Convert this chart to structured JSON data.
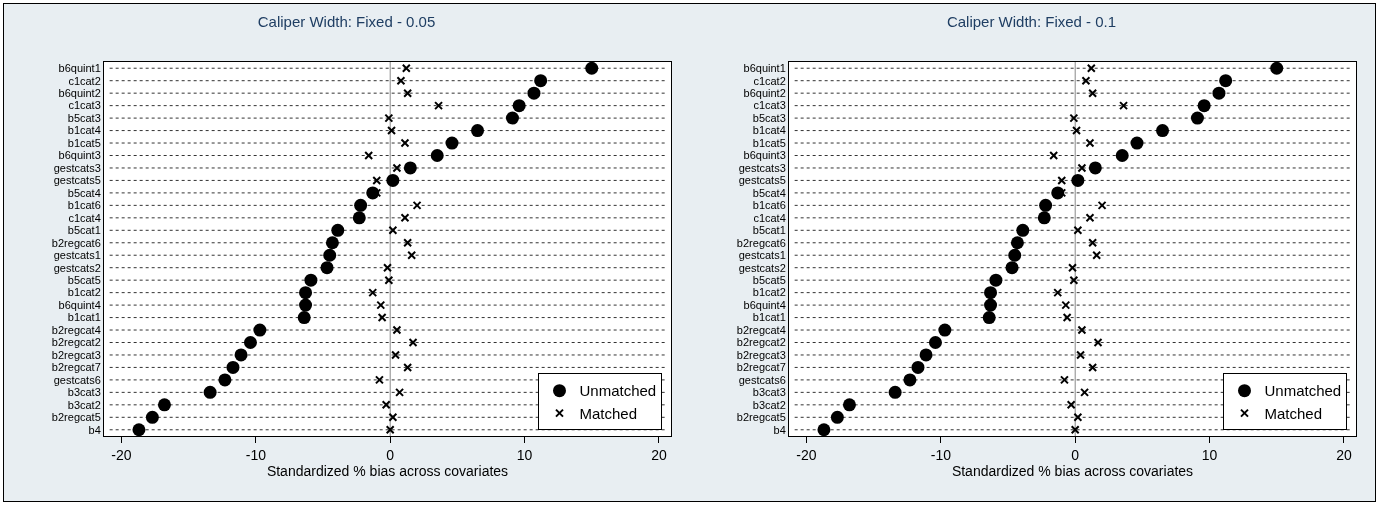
{
  "chart_data": [
    {
      "type": "scatter",
      "orientation": "horizontal",
      "title": "Caliper Width: Fixed - 0.05",
      "xlabel": "Standardized % bias across covariates",
      "categories": [
        "b6quint1",
        "c1cat2",
        "b6quint2",
        "c1cat3",
        "b5cat3",
        "b1cat4",
        "b1cat5",
        "b6quint3",
        "gestcats3",
        "gestcats5",
        "b5cat4",
        "b1cat6",
        "c1cat4",
        "b5cat1",
        "b2regcat6",
        "gestcats1",
        "gestcats2",
        "b5cat5",
        "b1cat2",
        "b6quint4",
        "b1cat1",
        "b2regcat4",
        "b2regcat2",
        "b2regcat3",
        "b2regcat7",
        "gestcats6",
        "b3cat3",
        "b3cat2",
        "b2regcat5",
        "b4"
      ],
      "series": [
        {
          "name": "Unmatched",
          "color": "#000000",
          "marker": "circle",
          "values": [
            15.0,
            11.2,
            10.7,
            9.6,
            9.1,
            6.5,
            4.6,
            3.5,
            1.5,
            0.2,
            -1.3,
            -2.2,
            -2.3,
            -3.9,
            -4.3,
            -4.5,
            -4.7,
            -5.9,
            -6.3,
            -6.3,
            -6.4,
            -9.7,
            -10.4,
            -11.1,
            -11.7,
            -12.3,
            -13.4,
            -16.8,
            -17.7,
            -18.7
          ]
        },
        {
          "name": "Matched",
          "color": "#000000",
          "marker": "cross",
          "values": [
            1.2,
            0.8,
            1.3,
            3.6,
            -0.1,
            0.1,
            1.1,
            -1.6,
            0.5,
            -1.0,
            -1.0,
            2.0,
            1.1,
            0.2,
            1.3,
            1.6,
            -0.2,
            -0.1,
            -1.3,
            -0.7,
            -0.6,
            0.5,
            1.7,
            0.4,
            1.3,
            -0.8,
            0.7,
            -0.3,
            0.2,
            0.0
          ]
        }
      ],
      "xlim": [
        -21.3,
        20.9
      ],
      "xticks": [
        -20,
        -10,
        0,
        10,
        20
      ],
      "ref_lines": [
        {
          "axis": "x",
          "value": 0,
          "color": "#888888"
        }
      ],
      "grid": "y",
      "line_style": "dotted",
      "legend": "bottom right"
    },
    {
      "type": "scatter",
      "orientation": "horizontal",
      "title": "Caliper Width: Fixed - 0.1",
      "xlabel": "Standardized % bias across covariates",
      "categories": [
        "b6quint1",
        "c1cat2",
        "b6quint2",
        "c1cat3",
        "b5cat3",
        "b1cat4",
        "b1cat5",
        "b6quint3",
        "gestcats3",
        "gestcats5",
        "b5cat4",
        "b1cat6",
        "c1cat4",
        "b5cat1",
        "b2regcat6",
        "gestcats1",
        "gestcats2",
        "b5cat5",
        "b1cat2",
        "b6quint4",
        "b1cat1",
        "b2regcat4",
        "b2regcat2",
        "b2regcat3",
        "b2regcat7",
        "gestcats6",
        "b3cat3",
        "b3cat2",
        "b2regcat5",
        "b4"
      ],
      "series": [
        {
          "name": "Unmatched",
          "color": "#000000",
          "marker": "circle",
          "values": [
            15.0,
            11.2,
            10.7,
            9.6,
            9.1,
            6.5,
            4.6,
            3.5,
            1.5,
            0.2,
            -1.3,
            -2.2,
            -2.3,
            -3.9,
            -4.3,
            -4.5,
            -4.7,
            -5.9,
            -6.3,
            -6.3,
            -6.4,
            -9.7,
            -10.4,
            -11.1,
            -11.7,
            -12.3,
            -13.4,
            -16.8,
            -17.7,
            -18.7
          ]
        },
        {
          "name": "Matched",
          "color": "#000000",
          "marker": "cross",
          "values": [
            1.2,
            0.8,
            1.3,
            3.6,
            -0.1,
            0.1,
            1.1,
            -1.6,
            0.5,
            -1.0,
            -1.0,
            2.0,
            1.1,
            0.2,
            1.3,
            1.6,
            -0.2,
            -0.1,
            -1.3,
            -0.7,
            -0.6,
            0.5,
            1.7,
            0.4,
            1.3,
            -0.8,
            0.7,
            -0.3,
            0.2,
            0.0
          ]
        }
      ],
      "xlim": [
        -21.3,
        20.9
      ],
      "xticks": [
        -20,
        -10,
        0,
        10,
        20
      ],
      "ref_lines": [
        {
          "axis": "x",
          "value": 0,
          "color": "#888888"
        }
      ],
      "grid": "y",
      "line_style": "dotted",
      "legend": "bottom right"
    }
  ]
}
